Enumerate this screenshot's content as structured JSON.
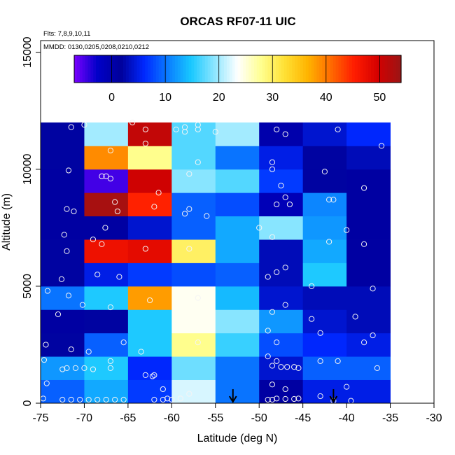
{
  "chart_data": {
    "type": "heatmap",
    "title": "ORCAS RF07-11 UIC",
    "annotation_lines": [
      "Flts: 7,8,9,10,11",
      "MMDD: 0130,0205,0208,0210,0212"
    ],
    "xlabel": "Latitude (deg N)",
    "ylabel": "Altitude (m)",
    "xlim": [
      -75,
      -30
    ],
    "ylim": [
      0,
      15500
    ],
    "x_ticks": [
      -75,
      -70,
      -65,
      -60,
      -55,
      -50,
      -45,
      -40,
      -35,
      -30
    ],
    "x_tick_labels": [
      "-75",
      "-70",
      "-65",
      "-60",
      "-55",
      "-50",
      "-45",
      "-40",
      "-35",
      "-30"
    ],
    "y_ticks": [
      0,
      5000,
      10000,
      15000
    ],
    "y_tick_labels": [
      "0",
      "5000",
      "10000",
      "15000"
    ],
    "colorbar": {
      "range": [
        -7,
        54
      ],
      "ticks": [
        0,
        10,
        20,
        30,
        40,
        50
      ],
      "tick_labels": [
        "0",
        "10",
        "20",
        "30",
        "40",
        "50"
      ],
      "colors": [
        "#7a00ff",
        "#0000c8",
        "#00009a",
        "#0028ff",
        "#0a7cff",
        "#18c8ff",
        "#8ce6ff",
        "#ffffff",
        "#ffff90",
        "#ffe135",
        "#ffb400",
        "#ff6a00",
        "#ff1c00",
        "#d40000",
        "#9a1515"
      ]
    },
    "x_edges": [
      -75,
      -70,
      -65,
      -60,
      -55,
      -50,
      -45,
      -40,
      -35
    ],
    "y_edges": [
      0,
      1000,
      2000,
      3000,
      4000,
      5000,
      6000,
      7000,
      8000,
      9000,
      10000,
      11000,
      12000
    ],
    "cell_values": [
      [
        9,
        13,
        7,
        22,
        10,
        1,
        5,
        5
      ],
      [
        12,
        15,
        6,
        18,
        10,
        4,
        9,
        9
      ],
      [
        2,
        9,
        15,
        28,
        16,
        8,
        6,
        5
      ],
      [
        1,
        2,
        15,
        24,
        19,
        12,
        4,
        3
      ],
      [
        10,
        15,
        38,
        24,
        14,
        4,
        3,
        3
      ],
      [
        2,
        5,
        7,
        8,
        9,
        3,
        15,
        1
      ],
      [
        2,
        47,
        48,
        30,
        13,
        3,
        13,
        1
      ],
      [
        1,
        1,
        4,
        9,
        13,
        19,
        12,
        1
      ],
      [
        1,
        53,
        45,
        9,
        8,
        -1,
        11,
        1
      ],
      [
        1,
        -5,
        50,
        19,
        17,
        7,
        2,
        1
      ],
      [
        2,
        39,
        28,
        17,
        10,
        5,
        2,
        3
      ],
      [
        2,
        20,
        51,
        17,
        20,
        0,
        4,
        6
      ]
    ],
    "sample_points": [
      [
        -74.7,
        200
      ],
      [
        -74.3,
        850
      ],
      [
        -74.6,
        1850
      ],
      [
        -74.4,
        2500
      ],
      [
        -73.0,
        3800
      ],
      [
        -71.8,
        4600
      ],
      [
        -70.2,
        4200
      ],
      [
        -74.2,
        4800
      ],
      [
        -72.6,
        5300
      ],
      [
        -72.0,
        6500
      ],
      [
        -72.3,
        7200
      ],
      [
        -71.2,
        8200
      ],
      [
        -71.8,
        9950
      ],
      [
        -71.5,
        11800
      ],
      [
        -72.0,
        8300
      ],
      [
        -70.0,
        11900
      ],
      [
        -72.0,
        1500
      ],
      [
        -72.5,
        1450
      ],
      [
        -71.0,
        1500
      ],
      [
        -70.0,
        1500
      ],
      [
        -69.0,
        1450
      ],
      [
        -67.0,
        1500
      ],
      [
        -69.5,
        2200
      ],
      [
        -71.5,
        2300
      ],
      [
        -72.5,
        150
      ],
      [
        -71.5,
        150
      ],
      [
        -70.5,
        150
      ],
      [
        -69.5,
        150
      ],
      [
        -68.5,
        150
      ],
      [
        -67.5,
        150
      ],
      [
        -66.5,
        150
      ],
      [
        -65.5,
        150
      ],
      [
        -67.0,
        1800
      ],
      [
        -65.5,
        2600
      ],
      [
        -67.0,
        4100
      ],
      [
        -68.5,
        5500
      ],
      [
        -66.0,
        5400
      ],
      [
        -68.0,
        6800
      ],
      [
        -67.6,
        7500
      ],
      [
        -66.2,
        8200
      ],
      [
        -67.5,
        9700
      ],
      [
        -68.0,
        9700
      ],
      [
        -67.0,
        9600
      ],
      [
        -67.0,
        10800
      ],
      [
        -66.5,
        8600
      ],
      [
        -69.0,
        7000
      ],
      [
        -62.5,
        4400
      ],
      [
        -63.0,
        6600
      ],
      [
        -62.0,
        8400
      ],
      [
        -61.5,
        9000
      ],
      [
        -63.0,
        11700
      ],
      [
        -63.0,
        11100
      ],
      [
        -64.5,
        12000
      ],
      [
        -63.0,
        1200
      ],
      [
        -62.0,
        1200
      ],
      [
        -61.0,
        600
      ],
      [
        -62.0,
        150
      ],
      [
        -61.0,
        150
      ],
      [
        -60.0,
        150
      ],
      [
        -58.0,
        400
      ],
      [
        -57.0,
        2600
      ],
      [
        -59.5,
        11700
      ],
      [
        -58.5,
        11800
      ],
      [
        -57.0,
        11900
      ],
      [
        -58.5,
        11600
      ],
      [
        -58.0,
        9800
      ],
      [
        -57.0,
        10300
      ],
      [
        -58.5,
        8100
      ],
      [
        -58.0,
        8300
      ],
      [
        -56.0,
        8000
      ],
      [
        -58.0,
        6600
      ],
      [
        -57.0,
        4500
      ],
      [
        -57.0,
        11700
      ],
      [
        -55.0,
        11600
      ],
      [
        -63.5,
        2200
      ],
      [
        -62.2,
        1150
      ],
      [
        -60.5,
        200
      ],
      [
        -59.0,
        200
      ],
      [
        -48.0,
        11700
      ],
      [
        -47.0,
        11500
      ],
      [
        -48.5,
        10300
      ],
      [
        -48.5,
        10000
      ],
      [
        -47.5,
        9300
      ],
      [
        -47.0,
        8800
      ],
      [
        -46.5,
        8500
      ],
      [
        -48.0,
        8500
      ],
      [
        -50.0,
        7500
      ],
      [
        -48.5,
        7100
      ],
      [
        -47.0,
        5800
      ],
      [
        -48.0,
        5600
      ],
      [
        -49.0,
        5400
      ],
      [
        -47.0,
        4200
      ],
      [
        -48.5,
        3900
      ],
      [
        -49.0,
        3100
      ],
      [
        -48.0,
        2600
      ],
      [
        -49.0,
        2000
      ],
      [
        -48.0,
        1800
      ],
      [
        -48.5,
        1600
      ],
      [
        -47.5,
        1550
      ],
      [
        -46.8,
        1550
      ],
      [
        -46.0,
        1550
      ],
      [
        -45.5,
        1500
      ],
      [
        -48.5,
        800
      ],
      [
        -47.0,
        600
      ],
      [
        -48.0,
        200
      ],
      [
        -47.0,
        180
      ],
      [
        -46.0,
        180
      ],
      [
        -45.5,
        200
      ],
      [
        -49.0,
        150
      ],
      [
        -48.5,
        150
      ],
      [
        -44.0,
        3600
      ],
      [
        -43.0,
        3000
      ],
      [
        -44.0,
        5000
      ],
      [
        -42.0,
        6900
      ],
      [
        -42.0,
        8700
      ],
      [
        -41.5,
        8700
      ],
      [
        -40.0,
        7400
      ],
      [
        -42.5,
        9900
      ],
      [
        -38.0,
        9200
      ],
      [
        -38.0,
        6800
      ],
      [
        -37.0,
        4900
      ],
      [
        -37.0,
        2900
      ],
      [
        -39.0,
        3700
      ],
      [
        -41.0,
        1800
      ],
      [
        -43.0,
        1800
      ],
      [
        -36.5,
        1500
      ],
      [
        -43.0,
        300
      ],
      [
        -40.0,
        700
      ],
      [
        -41.5,
        100
      ],
      [
        -39.5,
        100
      ],
      [
        -38.0,
        2600
      ],
      [
        -36.0,
        11000
      ],
      [
        -41.0,
        11700
      ]
    ],
    "arrow_latitudes": [
      -53,
      -41.5
    ]
  }
}
